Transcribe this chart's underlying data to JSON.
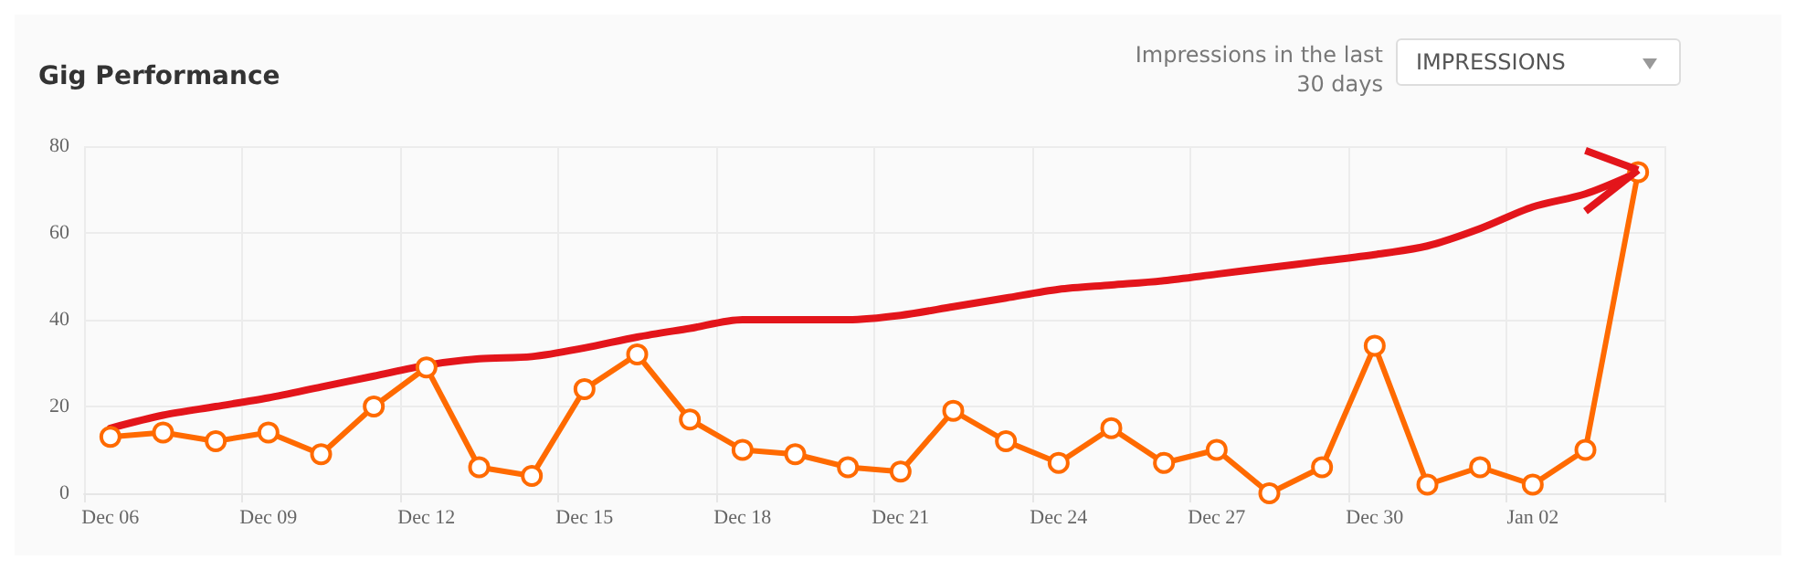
{
  "chart_data": {
    "type": "line",
    "title": "Gig Performance",
    "annotations": [
      "Impressions in the last 30 days",
      "IMPRESSIONS"
    ],
    "categories": [
      "Dec 06",
      null,
      null,
      "Dec 09",
      null,
      null,
      "Dec 12",
      null,
      null,
      "Dec 15",
      null,
      null,
      "Dec 18",
      null,
      null,
      "Dec 21",
      null,
      null,
      "Dec 24",
      null,
      null,
      "Dec 27",
      null,
      null,
      "Dec 30",
      null,
      null,
      "Jan 02",
      null,
      null
    ],
    "series": [
      {
        "color": "#e3151b",
        "marker": "none",
        "values": [
          15,
          18,
          20,
          22,
          24.5,
          27,
          29.5,
          31,
          31.5,
          33.5,
          36,
          38,
          40,
          40,
          40,
          41,
          43,
          45,
          47,
          48,
          49,
          50.5,
          52,
          53.5,
          55,
          57,
          61,
          66,
          69,
          74
        ]
      },
      {
        "color": "#ff6a00",
        "values": [
          13,
          14,
          12,
          14,
          9,
          20,
          29,
          6,
          4,
          24,
          32,
          17,
          10,
          9,
          6,
          5,
          19,
          12,
          7,
          15,
          7,
          10,
          0,
          6,
          34,
          2,
          6,
          2,
          10,
          74
        ]
      }
    ],
    "ylim": [
      0,
      80
    ],
    "yticks": [
      0,
      20,
      40,
      60,
      80
    ],
    "grid": true,
    "marker": "circle",
    "line_style": "solid"
  }
}
